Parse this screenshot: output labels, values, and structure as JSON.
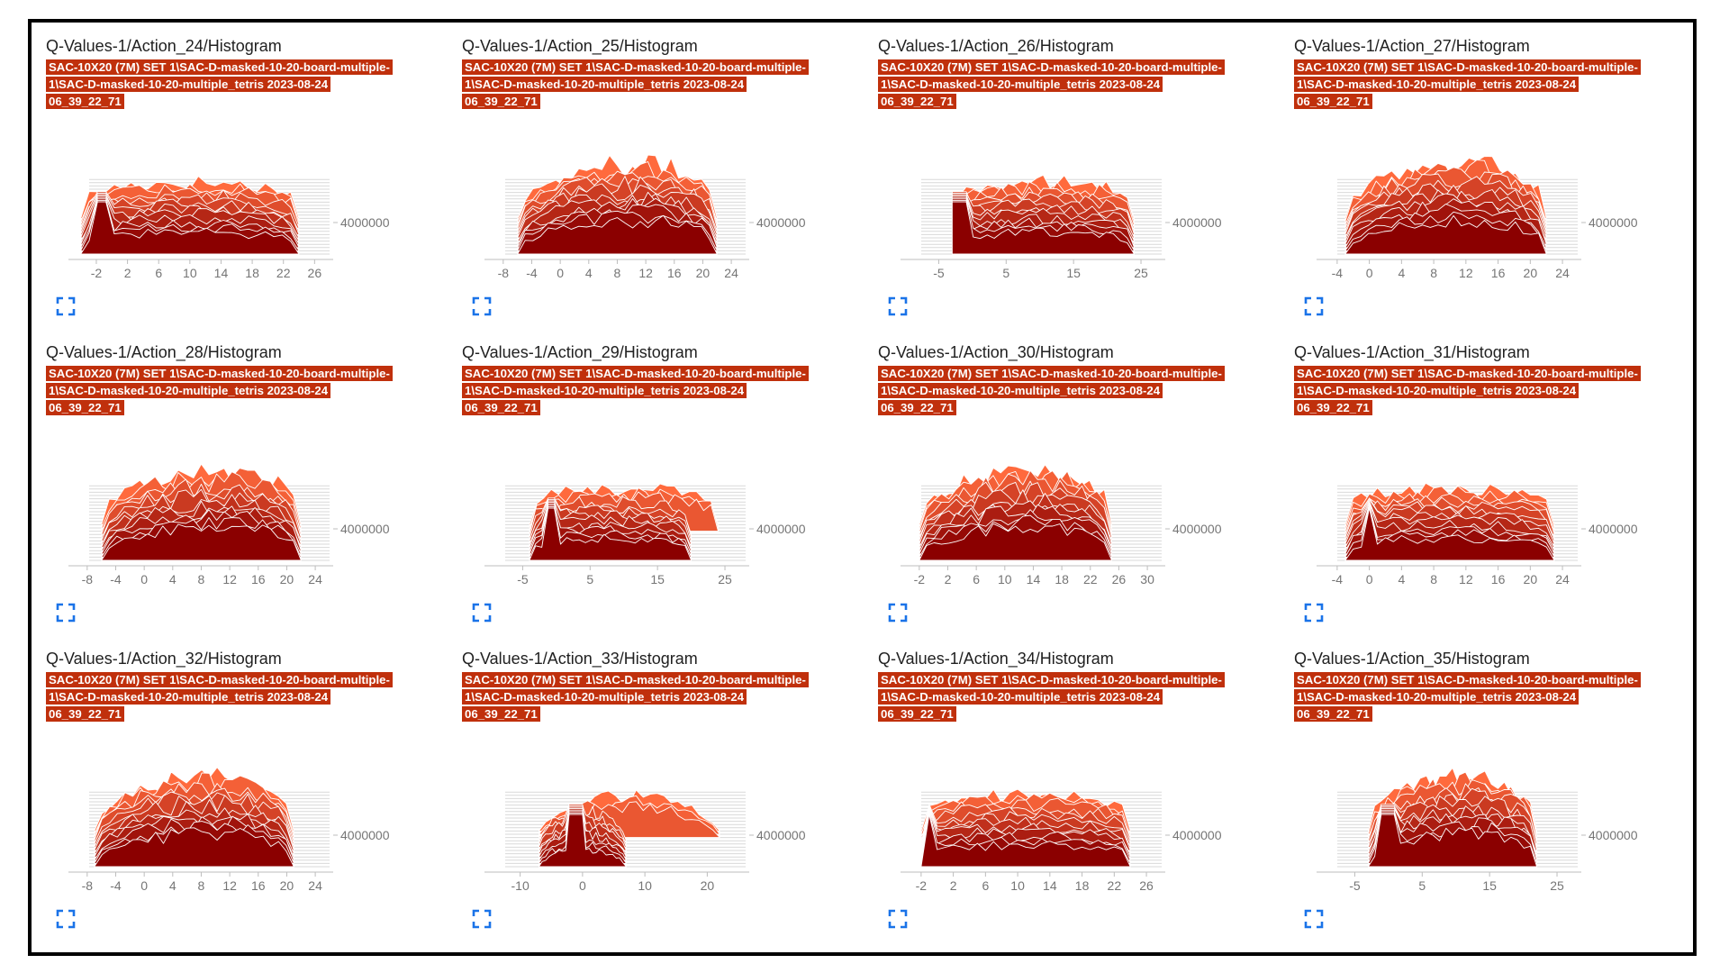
{
  "run_label": "SAC-10X20 (7M) SET 1\\SAC-D-masked-10-20-board-multiple-1\\SAC-D-masked-10-20-multiple_tetris 2023-08-24 06_39_22_71",
  "colors": {
    "accent": "#c0300c",
    "dark": "#8b0000",
    "light": "#ff6a3d",
    "expand_icon": "#1a73e8"
  },
  "charts": [
    {
      "title": "Q-Values-1/Action_24/Histogram",
      "ytick": "4000000",
      "xticks": [
        -2,
        2,
        6,
        10,
        14,
        18,
        22,
        26
      ],
      "xlim": [
        -5,
        27
      ],
      "range": [
        -4,
        24
      ],
      "peak": -1,
      "style": "flat"
    },
    {
      "title": "Q-Values-1/Action_25/Histogram",
      "ytick": "4000000",
      "xticks": [
        -8,
        -4,
        0,
        4,
        8,
        12,
        16,
        20,
        24
      ],
      "xlim": [
        -10,
        25
      ],
      "range": [
        -6,
        22
      ],
      "peak": null,
      "style": "hump"
    },
    {
      "title": "Q-Values-1/Action_26/Histogram",
      "ytick": "4000000",
      "xticks": [
        -5,
        5,
        15,
        25
      ],
      "xlim": [
        -10,
        27
      ],
      "range": [
        -3,
        24
      ],
      "peak": -2,
      "style": "flat"
    },
    {
      "title": "Q-Values-1/Action_27/Histogram",
      "ytick": "4000000",
      "xticks": [
        -4,
        0,
        4,
        8,
        12,
        16,
        20,
        24
      ],
      "xlim": [
        -6,
        25
      ],
      "range": [
        -3,
        22
      ],
      "peak": null,
      "style": "hump"
    },
    {
      "title": "Q-Values-1/Action_28/Histogram",
      "ytick": "4000000",
      "xticks": [
        -8,
        -4,
        0,
        4,
        8,
        12,
        16,
        20,
        24
      ],
      "xlim": [
        -10,
        25
      ],
      "range": [
        -6,
        22
      ],
      "peak": null,
      "style": "hump"
    },
    {
      "title": "Q-Values-1/Action_29/Histogram",
      "ytick": "4000000",
      "xticks": [
        -5,
        5,
        15,
        25
      ],
      "xlim": [
        -10,
        27
      ],
      "range": [
        -4,
        20
      ],
      "peak": -1,
      "style": "shelf"
    },
    {
      "title": "Q-Values-1/Action_30/Histogram",
      "ytick": "4000000",
      "xticks": [
        -2,
        2,
        6,
        10,
        14,
        18,
        22,
        26,
        30
      ],
      "xlim": [
        -4,
        31
      ],
      "range": [
        -2,
        25
      ],
      "peak": null,
      "style": "hump"
    },
    {
      "title": "Q-Values-1/Action_31/Histogram",
      "ytick": "4000000",
      "xticks": [
        -4,
        0,
        4,
        8,
        12,
        16,
        20,
        24
      ],
      "xlim": [
        -6,
        25
      ],
      "range": [
        -3,
        23
      ],
      "peak": 0,
      "style": "flat"
    },
    {
      "title": "Q-Values-1/Action_32/Histogram",
      "ytick": "4000000",
      "xticks": [
        -8,
        -4,
        0,
        4,
        8,
        12,
        16,
        20,
        24
      ],
      "xlim": [
        -10,
        25
      ],
      "range": [
        -7,
        21
      ],
      "peak": null,
      "style": "hump"
    },
    {
      "title": "Q-Values-1/Action_33/Histogram",
      "ytick": "4000000",
      "xticks": [
        -10,
        0,
        10,
        20
      ],
      "xlim": [
        -15,
        25
      ],
      "range": [
        -7,
        7
      ],
      "peak": -1,
      "style": "narrow"
    },
    {
      "title": "Q-Values-1/Action_34/Histogram",
      "ytick": "4000000",
      "xticks": [
        -2,
        2,
        6,
        10,
        14,
        18,
        22,
        26
      ],
      "xlim": [
        -4,
        27
      ],
      "range": [
        -2,
        24
      ],
      "peak": -1,
      "style": "flat"
    },
    {
      "title": "Q-Values-1/Action_35/Histogram",
      "ytick": "4000000",
      "xticks": [
        -5,
        5,
        15,
        25
      ],
      "xlim": [
        -10,
        27
      ],
      "range": [
        -3,
        22
      ],
      "peak": 0,
      "style": "hump"
    }
  ],
  "chart_data": [
    {
      "type": "area",
      "title": "Q-Values-1/Action_24/Histogram",
      "xticks": [
        -2,
        2,
        6,
        10,
        14,
        18,
        22,
        26
      ],
      "yticks": [
        4000000
      ]
    },
    {
      "type": "area",
      "title": "Q-Values-1/Action_25/Histogram",
      "xticks": [
        -8,
        -4,
        0,
        4,
        8,
        12,
        16,
        20,
        24
      ],
      "yticks": [
        4000000
      ]
    },
    {
      "type": "area",
      "title": "Q-Values-1/Action_26/Histogram",
      "xticks": [
        -5,
        5,
        15,
        25
      ],
      "yticks": [
        4000000
      ]
    },
    {
      "type": "area",
      "title": "Q-Values-1/Action_27/Histogram",
      "xticks": [
        -4,
        0,
        4,
        8,
        12,
        16,
        20,
        24
      ],
      "yticks": [
        4000000
      ]
    },
    {
      "type": "area",
      "title": "Q-Values-1/Action_28/Histogram",
      "xticks": [
        -8,
        -4,
        0,
        4,
        8,
        12,
        16,
        20,
        24
      ],
      "yticks": [
        4000000
      ]
    },
    {
      "type": "area",
      "title": "Q-Values-1/Action_29/Histogram",
      "xticks": [
        -5,
        5,
        15,
        25
      ],
      "yticks": [
        4000000
      ]
    },
    {
      "type": "area",
      "title": "Q-Values-1/Action_30/Histogram",
      "xticks": [
        -2,
        2,
        6,
        10,
        14,
        18,
        22,
        26,
        30
      ],
      "yticks": [
        4000000
      ]
    },
    {
      "type": "area",
      "title": "Q-Values-1/Action_31/Histogram",
      "xticks": [
        -4,
        0,
        4,
        8,
        12,
        16,
        20,
        24
      ],
      "yticks": [
        4000000
      ]
    },
    {
      "type": "area",
      "title": "Q-Values-1/Action_32/Histogram",
      "xticks": [
        -8,
        -4,
        0,
        4,
        8,
        12,
        16,
        20,
        24
      ],
      "yticks": [
        4000000
      ]
    },
    {
      "type": "area",
      "title": "Q-Values-1/Action_33/Histogram",
      "xticks": [
        -10,
        0,
        10,
        20
      ],
      "yticks": [
        4000000
      ]
    },
    {
      "type": "area",
      "title": "Q-Values-1/Action_34/Histogram",
      "xticks": [
        -2,
        2,
        6,
        10,
        14,
        18,
        22,
        26
      ],
      "yticks": [
        4000000
      ]
    },
    {
      "type": "area",
      "title": "Q-Values-1/Action_35/Histogram",
      "xticks": [
        -5,
        5,
        15,
        25
      ],
      "yticks": [
        4000000
      ]
    }
  ]
}
